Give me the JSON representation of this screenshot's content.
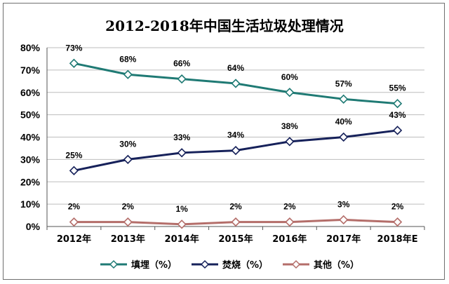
{
  "chart_data": {
    "type": "line",
    "title": "2012-2018年中国生活垃圾处理情况",
    "categories": [
      "2012年",
      "2013年",
      "2014年",
      "2015年",
      "2016年",
      "2017年",
      "2018年E"
    ],
    "ylim": [
      0,
      80
    ],
    "yticks": [
      "0%",
      "10%",
      "20%",
      "30%",
      "40%",
      "50%",
      "60%",
      "70%",
      "80%"
    ],
    "grid": true,
    "legend_position": "bottom",
    "series": [
      {
        "name": "填埋（%）",
        "values": [
          73,
          68,
          66,
          64,
          60,
          57,
          55
        ],
        "labels": [
          "73%",
          "68%",
          "66%",
          "64%",
          "60%",
          "57%",
          "55%"
        ],
        "color": "#1f7a74"
      },
      {
        "name": "焚烧（%）",
        "values": [
          25,
          30,
          33,
          34,
          38,
          40,
          43
        ],
        "labels": [
          "25%",
          "30%",
          "33%",
          "34%",
          "38%",
          "40%",
          "43%"
        ],
        "color": "#16215a"
      },
      {
        "name": "其他（%）",
        "values": [
          2,
          2,
          1,
          2,
          2,
          3,
          2
        ],
        "labels": [
          "2%",
          "2%",
          "1%",
          "2%",
          "2%",
          "3%",
          "2%"
        ],
        "color": "#b46e6a"
      }
    ]
  }
}
